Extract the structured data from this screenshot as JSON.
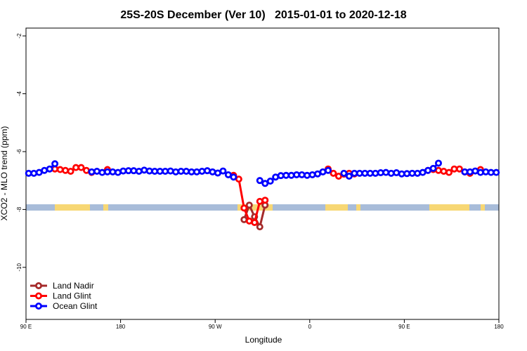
{
  "chart_data": {
    "type": "line",
    "title": "25S-20S December (Ver 10)   2015-01-01 to 2020-12-18",
    "x_label": "Longitude",
    "y_label": "XCO2 - MLO trend (ppm)",
    "xlim": [
      90,
      540
    ],
    "xticks": [
      {
        "value": 90,
        "label": "90 E"
      },
      {
        "value": 180,
        "label": "180"
      },
      {
        "value": 270,
        "label": "90 W"
      },
      {
        "value": 360,
        "label": "0"
      },
      {
        "value": 450,
        "label": "90 E"
      },
      {
        "value": 540,
        "label": "180"
      }
    ],
    "ylim": [
      -11.8,
      -1.73
    ],
    "yticks": [
      -2,
      -4,
      -6,
      -8,
      -10
    ],
    "legend": "bottom-left",
    "x": [
      92.5,
      97.5,
      102.5,
      107.5,
      112.5,
      117.5,
      122.5,
      127.5,
      132.5,
      137.5,
      142.5,
      147.5,
      152.5,
      157.5,
      162.5,
      167.5,
      172.5,
      177.5,
      182.5,
      187.5,
      192.5,
      197.5,
      202.5,
      207.5,
      212.5,
      217.5,
      222.5,
      227.5,
      232.5,
      237.5,
      242.5,
      247.5,
      252.5,
      257.5,
      262.5,
      267.5,
      272.5,
      277.5,
      282.5,
      287.5,
      292.5,
      297.5,
      302.5,
      307.5,
      312.5,
      317.5,
      322.5,
      327.5,
      332.5,
      337.5,
      342.5,
      347.5,
      352.5,
      357.5,
      362.5,
      367.5,
      372.5,
      377.5,
      382.5,
      387.5,
      392.5,
      397.5,
      402.5,
      407.5,
      412.5,
      417.5,
      422.5,
      427.5,
      432.5,
      437.5,
      442.5,
      447.5,
      452.5,
      457.5,
      462.5,
      467.5,
      472.5,
      477.5,
      482.5,
      487.5,
      492.5,
      497.5,
      502.5,
      507.5,
      512.5,
      517.5,
      522.5,
      527.5,
      532.5,
      537.5
    ],
    "series": [
      {
        "name": "Land Nadir",
        "color": "#a52a2a",
        "values": [
          null,
          null,
          null,
          null,
          null,
          null,
          null,
          null,
          null,
          null,
          null,
          null,
          null,
          null,
          null,
          null,
          null,
          null,
          null,
          null,
          null,
          null,
          null,
          null,
          null,
          null,
          null,
          null,
          null,
          null,
          null,
          null,
          null,
          null,
          null,
          null,
          null,
          null,
          null,
          null,
          null,
          -8.35,
          -7.85,
          -8.25,
          -8.6,
          -7.85,
          null,
          null,
          null,
          null,
          null,
          null,
          null,
          null,
          null,
          null,
          null,
          null,
          null,
          null,
          null,
          null,
          null,
          null,
          null,
          null,
          null,
          null,
          null,
          null,
          null,
          null,
          null,
          null,
          null,
          null,
          null,
          null,
          null,
          null,
          null,
          null,
          null,
          null,
          null,
          null,
          null,
          null,
          null,
          null
        ]
      },
      {
        "name": "Land Glint",
        "color": "#ff0000",
        "values": [
          null,
          null,
          null,
          null,
          null,
          -6.6,
          -6.62,
          -6.65,
          -6.68,
          -6.55,
          -6.55,
          -6.65,
          -6.72,
          null,
          null,
          -6.62,
          null,
          null,
          null,
          null,
          null,
          null,
          null,
          null,
          null,
          null,
          null,
          null,
          null,
          null,
          null,
          null,
          null,
          null,
          null,
          null,
          null,
          null,
          null,
          -6.82,
          -6.95,
          -7.95,
          -8.4,
          -8.45,
          -7.72,
          -7.68,
          null,
          null,
          null,
          null,
          null,
          null,
          null,
          null,
          null,
          null,
          null,
          -6.6,
          -6.75,
          -6.85,
          -6.78,
          -6.75,
          -6.77,
          null,
          null,
          null,
          null,
          null,
          null,
          null,
          null,
          null,
          null,
          null,
          null,
          null,
          -6.65,
          -6.62,
          -6.65,
          -6.68,
          -6.72,
          -6.6,
          -6.6,
          -6.7,
          -6.75,
          null,
          -6.62,
          null,
          null,
          null
        ]
      },
      {
        "name": "Ocean Glint",
        "color": "#0000ff",
        "values": [
          -6.75,
          -6.75,
          -6.72,
          -6.65,
          -6.6,
          -6.42,
          null,
          null,
          null,
          null,
          null,
          null,
          -6.7,
          -6.68,
          -6.72,
          -6.7,
          -6.7,
          -6.72,
          -6.67,
          -6.66,
          -6.66,
          -6.68,
          -6.64,
          -6.67,
          -6.68,
          -6.68,
          -6.68,
          -6.67,
          -6.7,
          -6.68,
          -6.68,
          -6.7,
          -6.7,
          -6.68,
          -6.66,
          -6.7,
          -6.74,
          -6.67,
          -6.8,
          -6.88,
          null,
          null,
          null,
          null,
          -7.0,
          -7.1,
          -7.02,
          -6.88,
          -6.83,
          -6.82,
          -6.82,
          -6.8,
          -6.8,
          -6.82,
          -6.8,
          -6.77,
          -6.7,
          -6.65,
          null,
          null,
          -6.75,
          -6.85,
          -6.75,
          -6.75,
          -6.75,
          -6.75,
          -6.75,
          -6.73,
          -6.72,
          -6.75,
          -6.73,
          -6.77,
          -6.76,
          -6.75,
          -6.75,
          -6.72,
          -6.65,
          -6.58,
          -6.4,
          null,
          null,
          null,
          null,
          -6.7,
          -6.7,
          -6.67,
          -6.72,
          -6.7,
          -6.72,
          -6.72
        ]
      }
    ]
  }
}
